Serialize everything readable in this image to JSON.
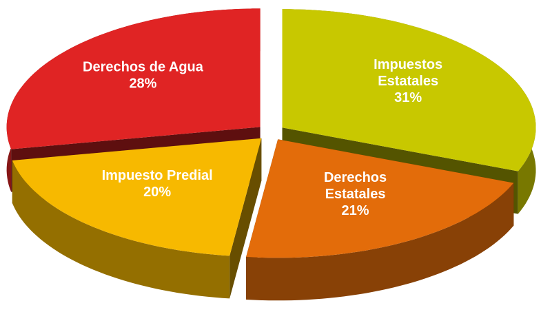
{
  "chart_data": {
    "type": "pie3d",
    "categories": [
      "Impuestos Estatales",
      "Derechos Estatales",
      "Impuesto Predial",
      "Derechos de Agua"
    ],
    "values": [
      31,
      21,
      20,
      28
    ],
    "value_labels": [
      "31%",
      "21%",
      "20%",
      "28%"
    ],
    "colors": [
      "#c8c800",
      "#e36c0a",
      "#f7b900",
      "#e02424"
    ]
  }
}
